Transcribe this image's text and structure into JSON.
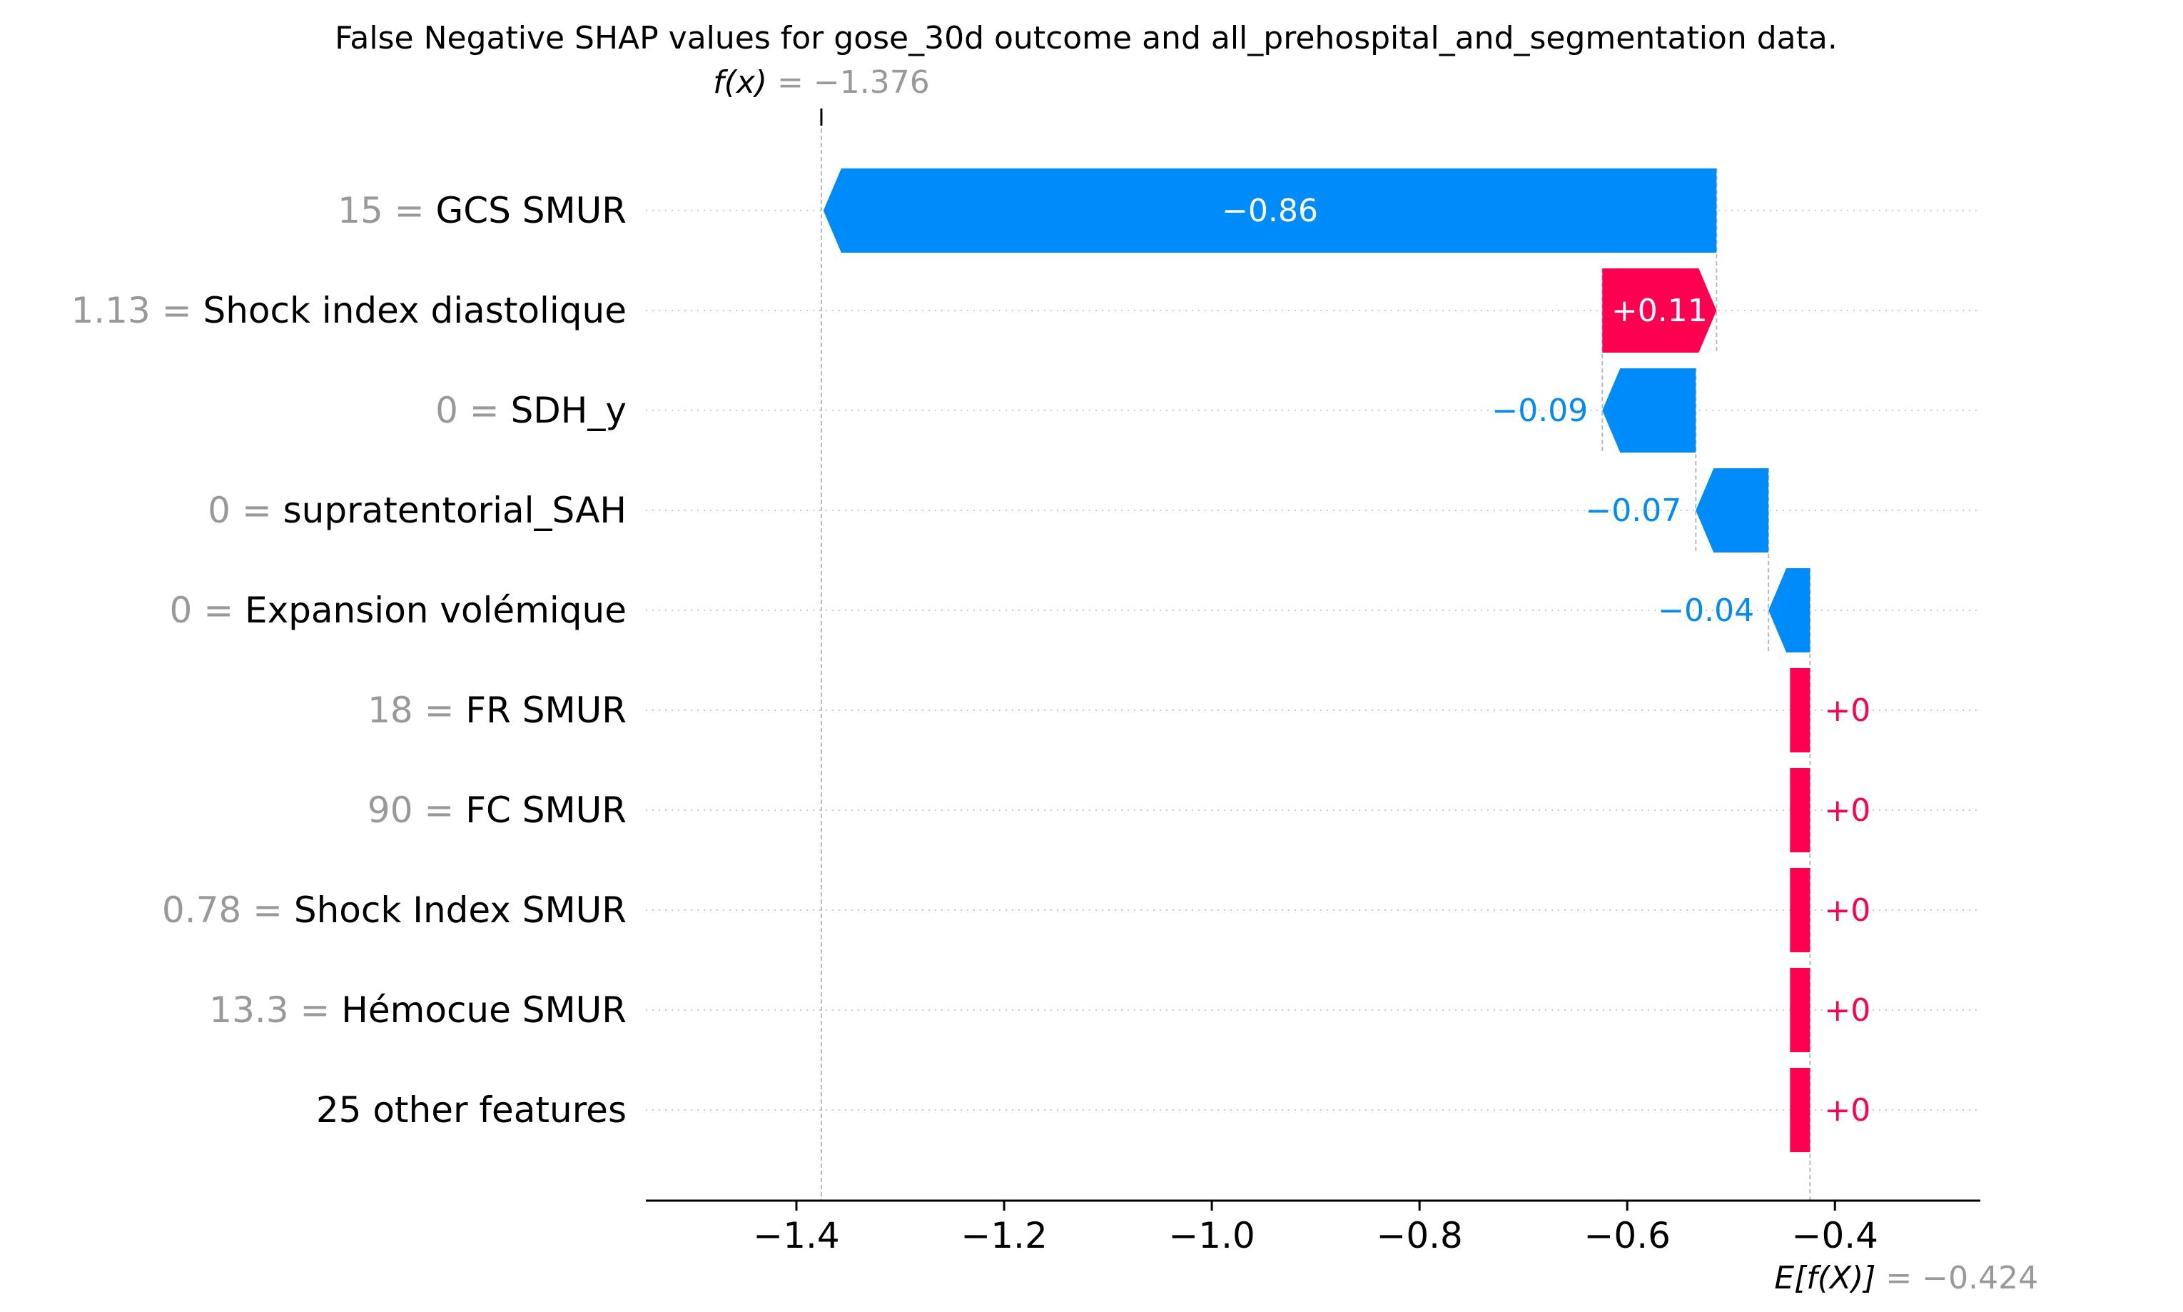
{
  "chart_data": {
    "type": "waterfall",
    "title": "False Negative SHAP values for gose_30d outcome and all_prehospital_and_segmentation data.",
    "fx": {
      "label": "f(x)",
      "value_text": " = −1.376",
      "value": -1.376
    },
    "base": {
      "label": "E[f(X)]",
      "value_text": " = −0.424",
      "value": -0.424
    },
    "xlim": [
      -1.545,
      -0.26
    ],
    "xticks": [
      {
        "value": -1.4,
        "label": "−1.4"
      },
      {
        "value": -1.2,
        "label": "−1.2"
      },
      {
        "value": -1.0,
        "label": "−1.0"
      },
      {
        "value": -0.8,
        "label": "−0.8"
      },
      {
        "value": -0.6,
        "label": "−0.6"
      },
      {
        "value": -0.4,
        "label": "−0.4"
      }
    ],
    "features": [
      {
        "value_label": "15 = ",
        "name": "GCS SMUR ",
        "shap": -0.86,
        "label": "−0.86",
        "label_inside": true
      },
      {
        "value_label": "1.13 = ",
        "name": "Shock index diastolique",
        "shap": 0.11,
        "label": "+0.11",
        "label_inside": true
      },
      {
        "value_label": "0 = ",
        "name": "SDH_y",
        "shap": -0.09,
        "label": "−0.09",
        "label_inside": false
      },
      {
        "value_label": "0 = ",
        "name": "supratentorial_SAH",
        "shap": -0.07,
        "label": "−0.07",
        "label_inside": false
      },
      {
        "value_label": "0 = ",
        "name": "Expansion volémique",
        "shap": -0.04,
        "label": "−0.04",
        "label_inside": false
      },
      {
        "value_label": "18 = ",
        "name": "FR SMUR",
        "shap": 0.0,
        "label": "+0",
        "label_inside": false
      },
      {
        "value_label": "90 = ",
        "name": "FC SMUR ",
        "shap": 0.0,
        "label": "+0",
        "label_inside": false
      },
      {
        "value_label": "0.78 = ",
        "name": "Shock Index SMUR",
        "shap": 0.0,
        "label": "+0",
        "label_inside": false
      },
      {
        "value_label": "13.3 = ",
        "name": "Hémocue SMUR ",
        "shap": 0.0,
        "label": "+0",
        "label_inside": false
      },
      {
        "value_label": "",
        "name": "25 other features",
        "shap": 0.0,
        "label": "+0",
        "label_inside": false
      }
    ],
    "colors": {
      "negative": "#008bfb",
      "positive": "#ff0051",
      "value_grey": "#999999",
      "grid": "#cccccc"
    },
    "grid": true
  }
}
